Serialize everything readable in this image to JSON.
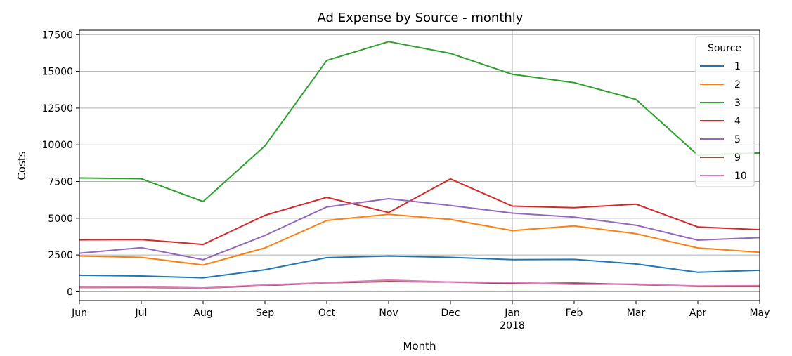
{
  "chart_data": {
    "type": "line",
    "title": "Ad Expense by Source - monthly",
    "xlabel": "Month",
    "ylabel": "Costs",
    "categories": [
      "Jun",
      "Jul",
      "Aug",
      "Sep",
      "Oct",
      "Nov",
      "Dec",
      "Jan",
      "Feb",
      "Mar",
      "Apr",
      "May"
    ],
    "year_label": "2018",
    "year_label_under": "Jan",
    "ylim": [
      -600,
      17800
    ],
    "yticks": [
      0,
      2500,
      5000,
      7500,
      10000,
      12500,
      15000,
      17500
    ],
    "grid": true,
    "legend": {
      "title": "Source",
      "placement": "top-right"
    },
    "series": [
      {
        "name": "1",
        "color": "#1f77b4",
        "values": [
          1125,
          1073,
          950,
          1500,
          2320,
          2430,
          2340,
          2180,
          2200,
          1890,
          1320,
          1460
        ]
      },
      {
        "name": "2",
        "color": "#ff7f0e",
        "values": [
          2430,
          2340,
          1820,
          2980,
          4850,
          5270,
          4920,
          4160,
          4480,
          3950,
          2980,
          2690
        ]
      },
      {
        "name": "3",
        "color": "#2ca02c",
        "values": [
          7740,
          7690,
          6140,
          9930,
          15740,
          17020,
          16220,
          14800,
          14230,
          13090,
          9300,
          9440
        ]
      },
      {
        "name": "4",
        "color": "#d62728",
        "values": [
          3530,
          3550,
          3220,
          5200,
          6420,
          5390,
          7680,
          5830,
          5720,
          5960,
          4410,
          4220
        ]
      },
      {
        "name": "5",
        "color": "#9467bd",
        "values": [
          2620,
          3000,
          2180,
          3830,
          5770,
          6330,
          5870,
          5350,
          5080,
          4530,
          3510,
          3680
        ]
      },
      {
        "name": "9",
        "color": "#8c564b",
        "values": [
          290,
          300,
          250,
          420,
          610,
          690,
          660,
          560,
          590,
          490,
          360,
          360
        ]
      },
      {
        "name": "10",
        "color": "#e377c2",
        "values": [
          310,
          330,
          260,
          460,
          620,
          790,
          660,
          640,
          500,
          520,
          390,
          420
        ]
      }
    ]
  }
}
